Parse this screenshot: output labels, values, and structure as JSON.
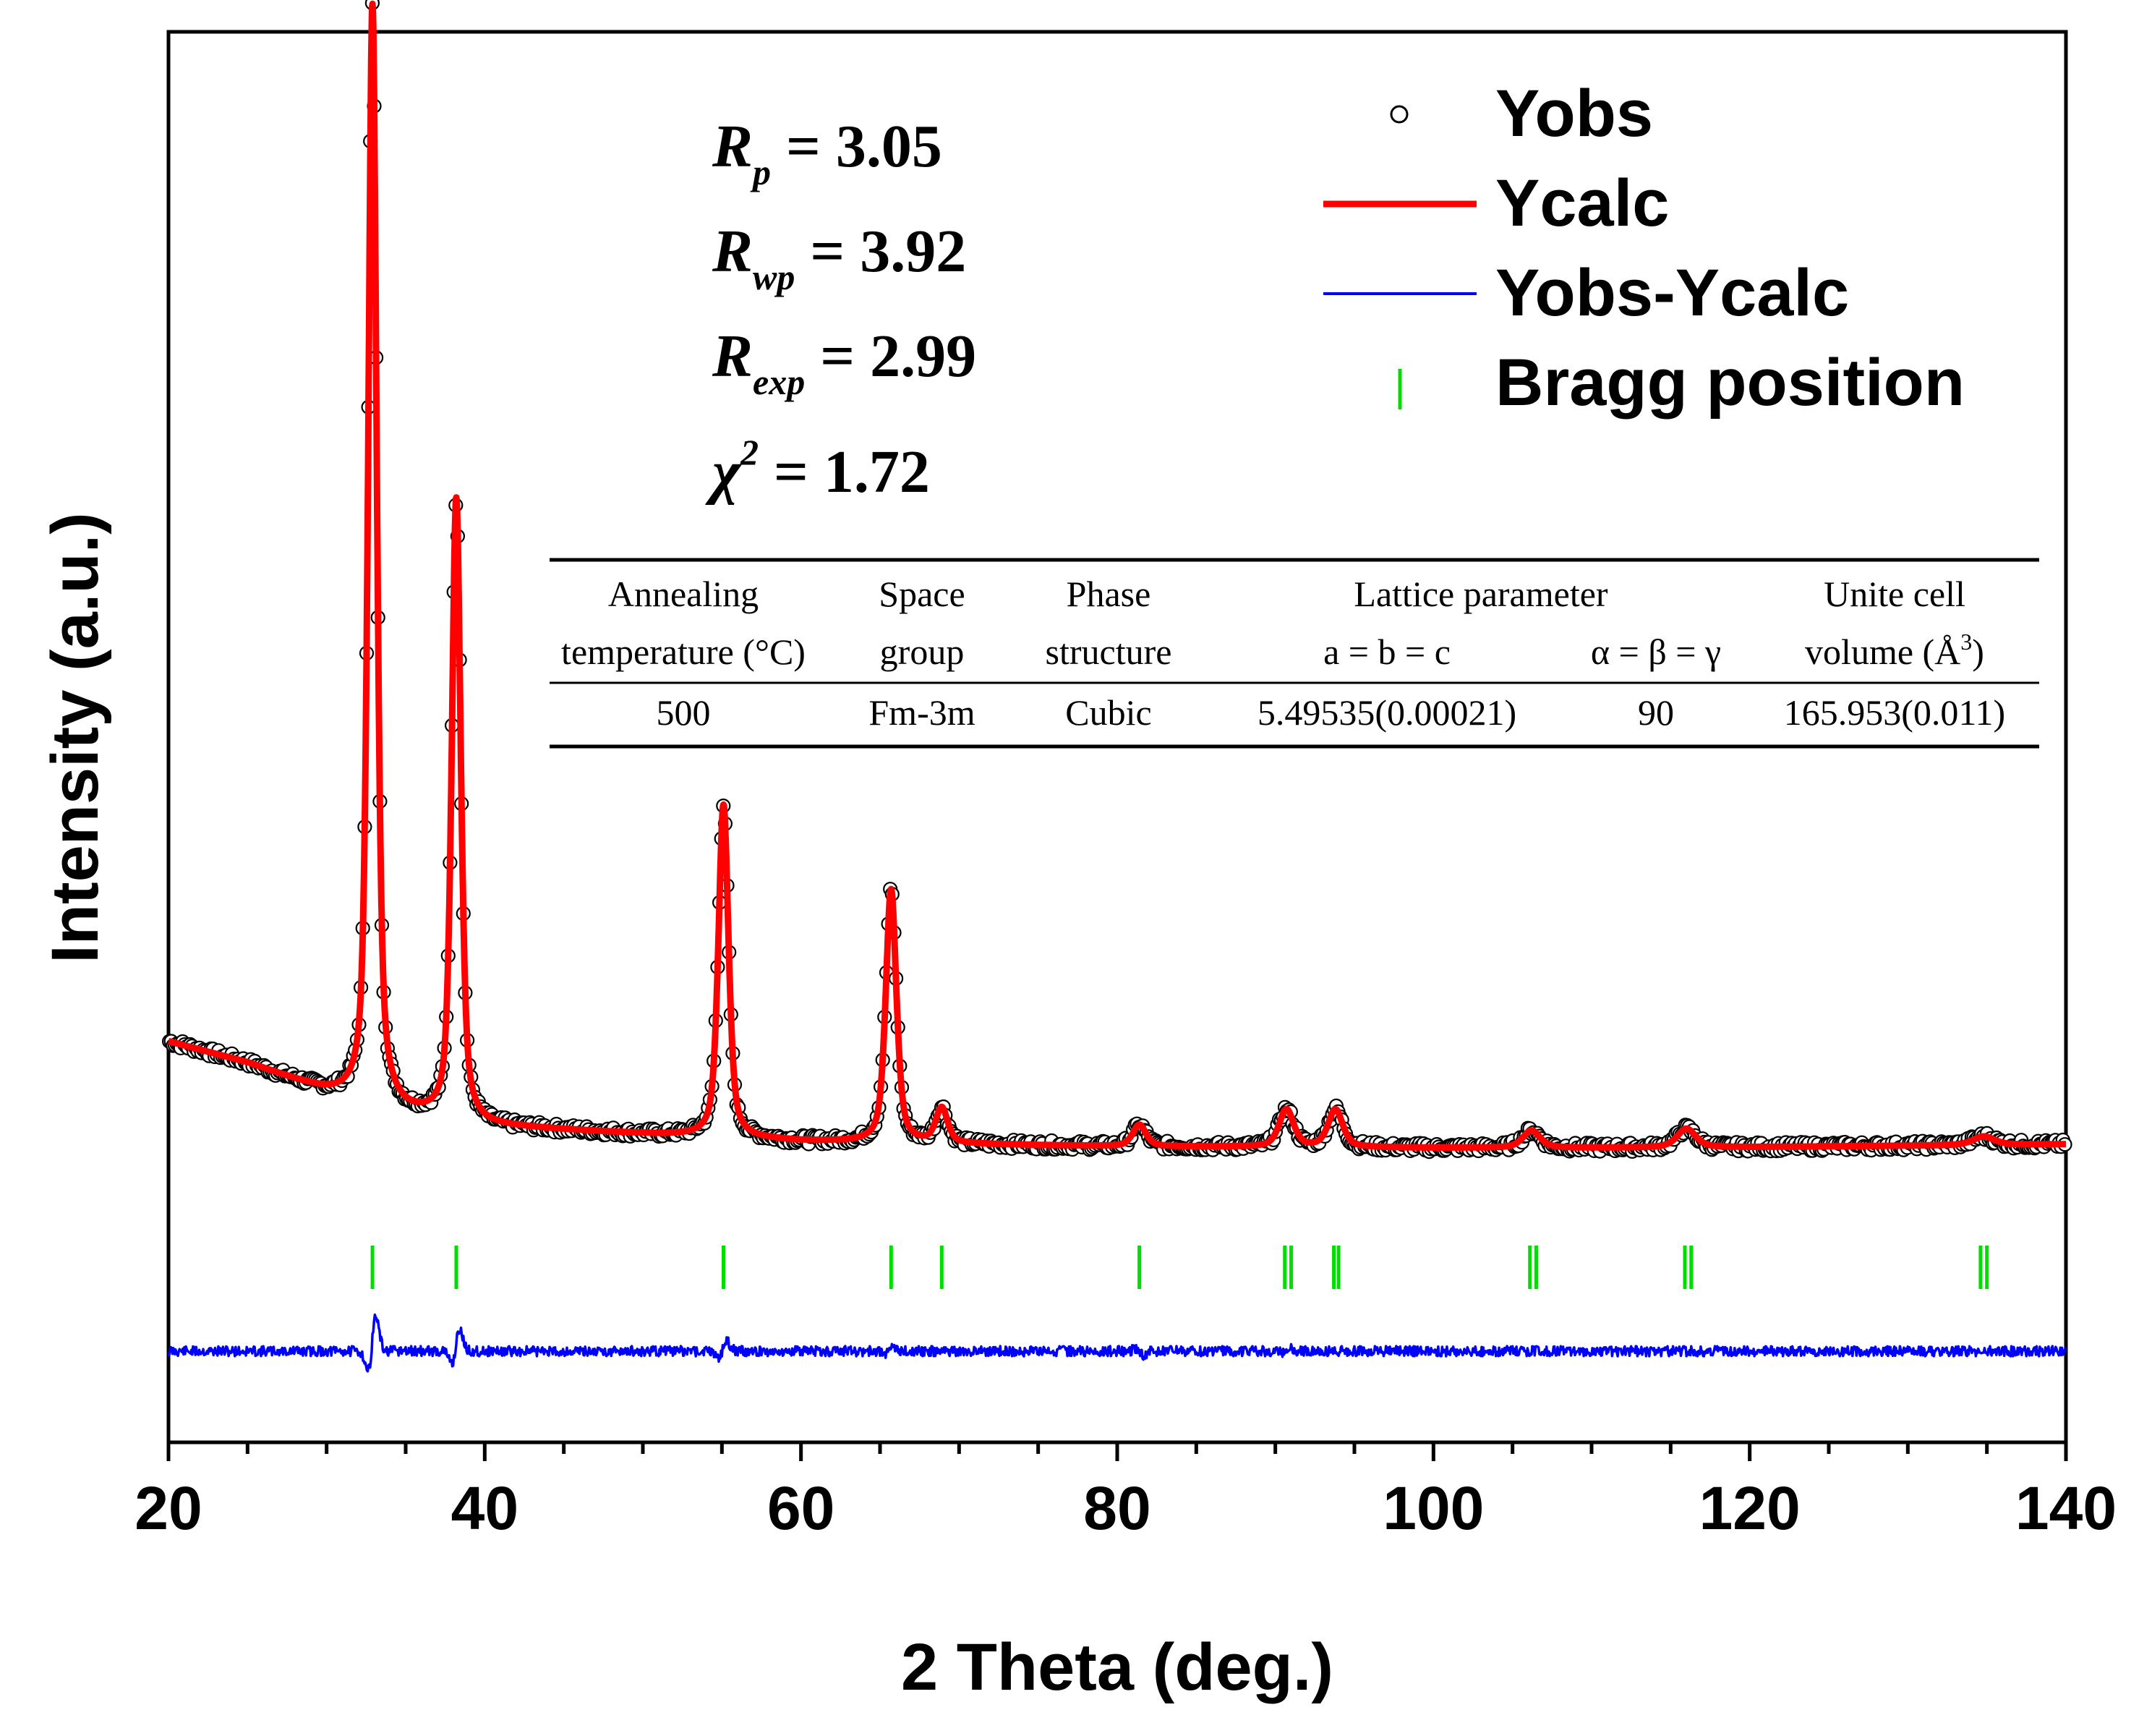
{
  "chart_data": {
    "type": "line",
    "xlabel": "2 Theta (deg.)",
    "ylabel": "Intensity (a.u.)",
    "xlim": [
      20,
      140
    ],
    "xticks": [
      20,
      40,
      60,
      80,
      100,
      120,
      140
    ],
    "colors": {
      "obs": "#000000",
      "calc": "#ff0000",
      "diff": "#0000ff",
      "bragg": "#00dd00"
    },
    "legend": {
      "position": "top-right",
      "entries": [
        "Yobs",
        "Ycalc",
        "Yobs-Ycalc",
        "Bragg position"
      ]
    },
    "background": {
      "x": [
        20,
        25,
        30,
        35,
        40,
        50,
        60,
        70,
        80,
        90,
        100,
        110,
        120,
        130,
        140
      ],
      "y": [
        0.2,
        0.17,
        0.13,
        0.1,
        0.083,
        0.072,
        0.062,
        0.058,
        0.055,
        0.054,
        0.053,
        0.053,
        0.054,
        0.056,
        0.058
      ]
    },
    "peaks": [
      {
        "pos": 32.9,
        "height": 1.52,
        "width": 0.32
      },
      {
        "pos": 38.2,
        "height": 0.86,
        "width": 0.34
      },
      {
        "pos": 55.1,
        "height": 0.46,
        "width": 0.38
      },
      {
        "pos": 65.7,
        "height": 0.35,
        "width": 0.4
      },
      {
        "pos": 68.9,
        "height": 0.048,
        "width": 0.45
      },
      {
        "pos": 81.4,
        "height": 0.03,
        "width": 0.5
      },
      {
        "pos": 90.7,
        "height": 0.052,
        "width": 0.55
      },
      {
        "pos": 93.8,
        "height": 0.052,
        "width": 0.55
      },
      {
        "pos": 106.2,
        "height": 0.024,
        "width": 0.65
      },
      {
        "pos": 116.0,
        "height": 0.026,
        "width": 0.7
      },
      {
        "pos": 134.8,
        "height": 0.012,
        "width": 0.8
      }
    ],
    "bragg_positions": [
      32.9,
      38.2,
      55.1,
      65.7,
      68.9,
      81.4,
      90.6,
      91.0,
      93.7,
      94.0,
      106.1,
      106.5,
      115.9,
      116.3,
      134.6,
      135.0
    ],
    "difference_features": [
      {
        "pos": 32.9,
        "amp": 0.9
      },
      {
        "pos": 38.2,
        "amp": 0.55
      },
      {
        "pos": 55.1,
        "amp": 0.25
      },
      {
        "pos": 65.7,
        "amp": 0.12
      },
      {
        "pos": 81.4,
        "amp": -0.1
      },
      {
        "pos": 90.7,
        "amp": 0.08
      }
    ],
    "statistics": {
      "rp": {
        "symbol": "R",
        "sub": "p",
        "text": " = 3.05"
      },
      "rwp": {
        "symbol": "R",
        "sub": "wp",
        "text": " = 3.92"
      },
      "rexp": {
        "symbol": "R",
        "sub": "exp",
        "text": " =  2.99"
      },
      "chi2": {
        "symbol": "χ",
        "sup": "2",
        "text": " = 1.72"
      }
    },
    "table": {
      "header_row1": [
        "Annealing",
        "Space",
        "Phase",
        "Lattice parameter",
        "Unite cell"
      ],
      "header_row2": [
        "temperature (°C)",
        "group",
        "structure",
        "a = b = c",
        "α = β = γ",
        "volume (Å",
        "3",
        ")"
      ],
      "row": [
        "500",
        "Fm-3m",
        "Cubic",
        "5.49535(0.00021)",
        "90",
        "165.953(0.011)"
      ]
    }
  }
}
